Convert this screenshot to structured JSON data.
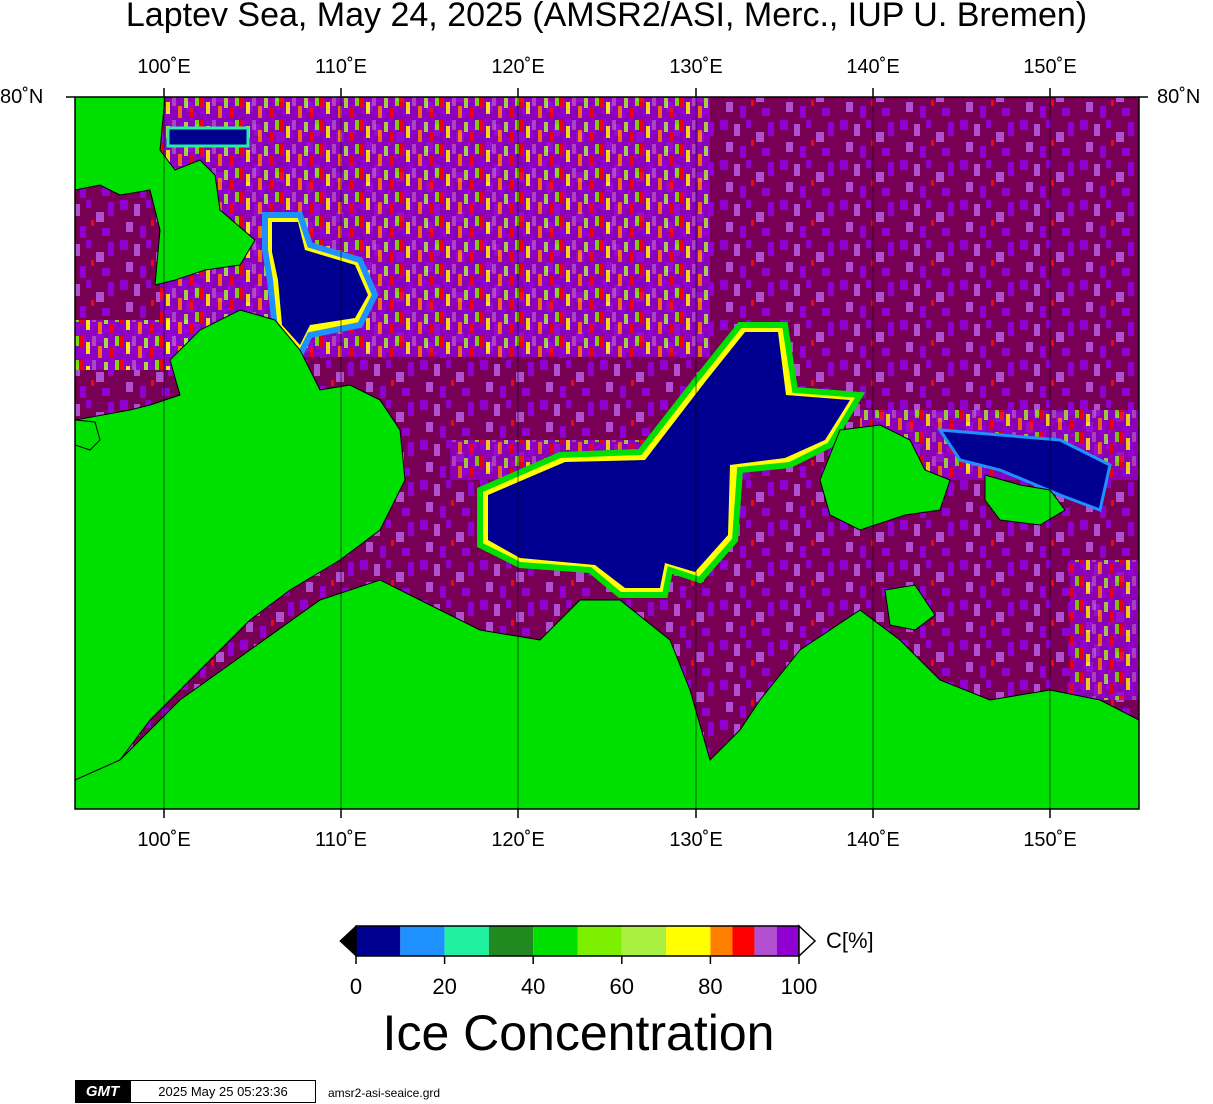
{
  "title": "Laptev Sea, May 24, 2025 (AMSR2/ASI, Merc., IUP U. Bremen)",
  "longitude_labels": [
    "100˚E",
    "110˚E",
    "120˚E",
    "130˚E",
    "140˚E",
    "150˚E"
  ],
  "latitude_labels": {
    "left": "80˚N",
    "right": "80˚N"
  },
  "colors": {
    "land": "#00e000",
    "open_water": "#000090",
    "full_ice": "#780054",
    "scale": [
      "#000090",
      "#1e90ff",
      "#20f0a0",
      "#208a20",
      "#00e000",
      "#7cf000",
      "#aaf040",
      "#ffff00",
      "#ff8000",
      "#ff0000",
      "#b050d0",
      "#9000d0"
    ]
  },
  "colorbar": {
    "unit": "C[%]",
    "ticks": [
      "0",
      "20",
      "40",
      "60",
      "80",
      "100"
    ],
    "title": "Ice Concentration"
  },
  "footer": {
    "logo": "GMT",
    "timestamp": "2025 May 25 05:23:36",
    "grid_file": "amsr2-asi-seaice.grd"
  }
}
